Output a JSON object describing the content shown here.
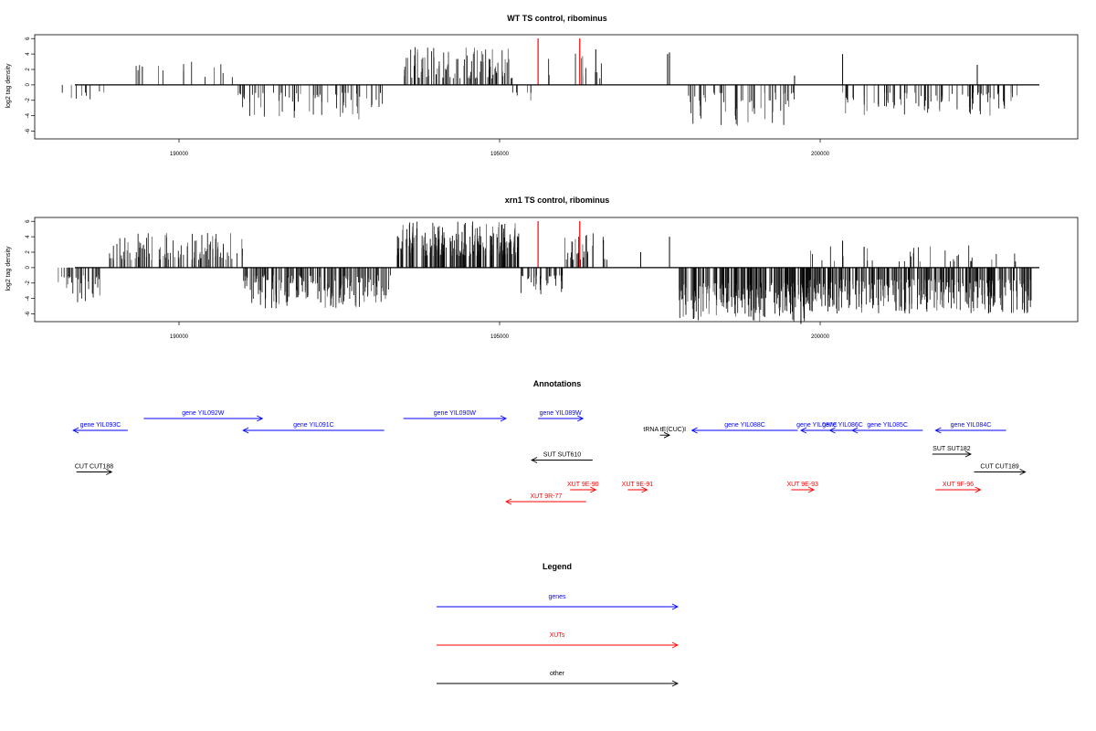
{
  "chart_data": [
    {
      "type": "bar",
      "title": "WT TS control, ribominus",
      "ylabel": "log2 tag density",
      "xlabel": "",
      "xlim": [
        188000,
        233500
      ],
      "ylim": [
        -7,
        6.5
      ],
      "xticks": [
        190000,
        195000,
        200000
      ],
      "xtick_labels": [
        "190000",
        "195000",
        "200000"
      ],
      "yticks": [
        6,
        4,
        2,
        0,
        -2,
        -4,
        -6
      ],
      "ytick_labels": [
        "6",
        "4",
        "2",
        "0",
        "-2",
        "-4",
        "-6"
      ],
      "regions": [
        {
          "x0": 188150,
          "x1": 188900,
          "min": 0.8,
          "max": 2.2,
          "sign": -1,
          "density": 0.012,
          "seed": 11
        },
        {
          "x0": 189000,
          "x1": 190900,
          "min": 1.0,
          "max": 3.0,
          "sign": 1,
          "density": 0.008,
          "seed": 12
        },
        {
          "x0": 190900,
          "x1": 193200,
          "min": 1.0,
          "max": 4.5,
          "sign": -1,
          "density": 0.03,
          "seed": 13
        },
        {
          "x0": 193500,
          "x1": 195200,
          "min": 0.8,
          "max": 4.9,
          "sign": 1,
          "density": 0.06,
          "seed": 14
        },
        {
          "x0": 195200,
          "x1": 195500,
          "min": 1.0,
          "max": 2.2,
          "sign": -1,
          "density": 0.02,
          "seed": 15
        },
        {
          "x0": 195700,
          "x1": 196600,
          "min": 0.8,
          "max": 4.5,
          "sign": 1,
          "density": 0.012,
          "seed": 16
        },
        {
          "x0": 197800,
          "x1": 199600,
          "min": 1.0,
          "max": 5.5,
          "sign": -1,
          "density": 0.03,
          "seed": 17
        },
        {
          "x0": 200300,
          "x1": 203200,
          "min": 1.0,
          "max": 4.0,
          "sign": -1,
          "density": 0.03,
          "seed": 18
        }
      ],
      "bars": [
        {
          "x": 195600,
          "y": 6.5,
          "color": "#ff0000"
        },
        {
          "x": 196250,
          "y": 6.5,
          "color": "#ff0000"
        },
        {
          "x": 197620,
          "y": 4.0,
          "color": "#000000"
        },
        {
          "x": 197650,
          "y": 4.2,
          "color": "#000000"
        },
        {
          "x": 200350,
          "y": 4.0,
          "color": "#000000"
        },
        {
          "x": 199600,
          "y": 1.2,
          "color": "#000000"
        },
        {
          "x": 196500,
          "y": 4.6,
          "color": "#000000"
        },
        {
          "x": 202450,
          "y": 2.6,
          "color": "#000000"
        }
      ]
    },
    {
      "type": "bar",
      "title": "xrn1 TS control, ribominus",
      "ylabel": "log2 tag density",
      "xlabel": "",
      "xlim": [
        188000,
        233500
      ],
      "ylim": [
        -7,
        6.5
      ],
      "xticks": [
        190000,
        195000,
        200000
      ],
      "xtick_labels": [
        "190000",
        "195000",
        "200000"
      ],
      "yticks": [
        6,
        4,
        2,
        0,
        -2,
        -4,
        -6
      ],
      "ytick_labels": [
        "6",
        "4",
        "2",
        "0",
        "-2",
        "-4",
        "-6"
      ],
      "regions": [
        {
          "x0": 188100,
          "x1": 188800,
          "min": 1.0,
          "max": 4.5,
          "sign": -1,
          "density": 0.05,
          "seed": 21
        },
        {
          "x0": 188900,
          "x1": 191000,
          "min": 1.0,
          "max": 4.5,
          "sign": 1,
          "density": 0.05,
          "seed": 22
        },
        {
          "x0": 191000,
          "x1": 193300,
          "min": 1.0,
          "max": 5.5,
          "sign": -1,
          "density": 0.08,
          "seed": 23
        },
        {
          "x0": 193400,
          "x1": 195300,
          "min": 1.5,
          "max": 6.0,
          "sign": 1,
          "density": 0.12,
          "seed": 24
        },
        {
          "x0": 195300,
          "x1": 196000,
          "min": 1.0,
          "max": 3.5,
          "sign": -1,
          "density": 0.05,
          "seed": 25
        },
        {
          "x0": 196000,
          "x1": 196700,
          "min": 1.0,
          "max": 4.5,
          "sign": 1,
          "density": 0.04,
          "seed": 26
        },
        {
          "x0": 197800,
          "x1": 199800,
          "min": 2.0,
          "max": 7.0,
          "sign": -1,
          "density": 0.12,
          "seed": 27
        },
        {
          "x0": 199800,
          "x1": 203300,
          "min": 1.5,
          "max": 6.0,
          "sign": -1,
          "density": 0.1,
          "seed": 28
        },
        {
          "x0": 199800,
          "x1": 203200,
          "min": 0.8,
          "max": 3.0,
          "sign": 1,
          "density": 0.01,
          "seed": 29
        }
      ],
      "bars": [
        {
          "x": 195600,
          "y": 6.5,
          "color": "#ff0000"
        },
        {
          "x": 196250,
          "y": 6.5,
          "color": "#ff0000"
        },
        {
          "x": 197650,
          "y": 4.0,
          "color": "#000000"
        },
        {
          "x": 197200,
          "y": 2.0,
          "color": "#000000"
        },
        {
          "x": 200350,
          "y": 3.5,
          "color": "#000000"
        },
        {
          "x": 199700,
          "y": -7.3,
          "color": "#000000"
        }
      ]
    }
  ],
  "annotations": {
    "title": "Annotations",
    "colors": {
      "genes": "#0000ff",
      "XUTs": "#ff0000",
      "other": "#000000"
    },
    "features": [
      {
        "label": "gene YIL093C",
        "kind": "genes",
        "x0": 188350,
        "x1": 189200,
        "dir": "left",
        "row": 2
      },
      {
        "label": "gene YIL092W",
        "kind": "genes",
        "x0": 189450,
        "x1": 191300,
        "dir": "right",
        "row": 1
      },
      {
        "label": "gene YIL091C",
        "kind": "genes",
        "x0": 191000,
        "x1": 193200,
        "dir": "left",
        "row": 2
      },
      {
        "label": "gene YIL090W",
        "kind": "genes",
        "x0": 193500,
        "x1": 195100,
        "dir": "right",
        "row": 1
      },
      {
        "label": "gene YIL089W",
        "kind": "genes",
        "x0": 195600,
        "x1": 196300,
        "dir": "right",
        "row": 1
      },
      {
        "label": "tRNA tE(CUC)I",
        "kind": "other",
        "x0": 197500,
        "x1": 197650,
        "dir": "right",
        "row": 2.4
      },
      {
        "label": "gene YIL088C",
        "kind": "genes",
        "x0": 198000,
        "x1": 199650,
        "dir": "left",
        "row": 2
      },
      {
        "label": "gene YIL087C",
        "kind": "genes",
        "x0": 199700,
        "x1": 200200,
        "dir": "left",
        "row": 2
      },
      {
        "label": "gene YIL086C",
        "kind": "genes",
        "x0": 200150,
        "x1": 200550,
        "dir": "left",
        "row": 2
      },
      {
        "label": "gene YIL085C",
        "kind": "genes",
        "x0": 200500,
        "x1": 201600,
        "dir": "left",
        "row": 2
      },
      {
        "label": "gene YIL084C",
        "kind": "genes",
        "x0": 201800,
        "x1": 202900,
        "dir": "left",
        "row": 2
      },
      {
        "label": "CUT CUT188",
        "kind": "other",
        "x0": 188400,
        "x1": 188950,
        "dir": "right",
        "row": 5.5
      },
      {
        "label": "SUT SUT610",
        "kind": "other",
        "x0": 195500,
        "x1": 196450,
        "dir": "left",
        "row": 4.5
      },
      {
        "label": "SUT SUT182",
        "kind": "other",
        "x0": 201750,
        "x1": 202350,
        "dir": "right",
        "row": 4
      },
      {
        "label": "CUT CUT189",
        "kind": "other",
        "x0": 202400,
        "x1": 203200,
        "dir": "right",
        "row": 5.5
      },
      {
        "label": "XUT 9E-90",
        "kind": "XUTs",
        "x0": 196100,
        "x1": 196500,
        "dir": "right",
        "row": 7
      },
      {
        "label": "XUT 9E-91",
        "kind": "XUTs",
        "x0": 197000,
        "x1": 197300,
        "dir": "right",
        "row": 7
      },
      {
        "label": "XUT 9R-77",
        "kind": "XUTs",
        "x0": 195100,
        "x1": 196350,
        "dir": "left",
        "row": 8
      },
      {
        "label": "XUT 9E-93",
        "kind": "XUTs",
        "x0": 199550,
        "x1": 199900,
        "dir": "right",
        "row": 7
      },
      {
        "label": "XUT 9F-96",
        "kind": "XUTs",
        "x0": 201800,
        "x1": 202500,
        "dir": "right",
        "row": 7
      }
    ]
  },
  "legend": {
    "title": "Legend",
    "items": [
      {
        "label": "genes",
        "color": "#0000ff"
      },
      {
        "label": "XUTs",
        "color": "#ff0000"
      },
      {
        "label": "other",
        "color": "#000000"
      }
    ]
  }
}
